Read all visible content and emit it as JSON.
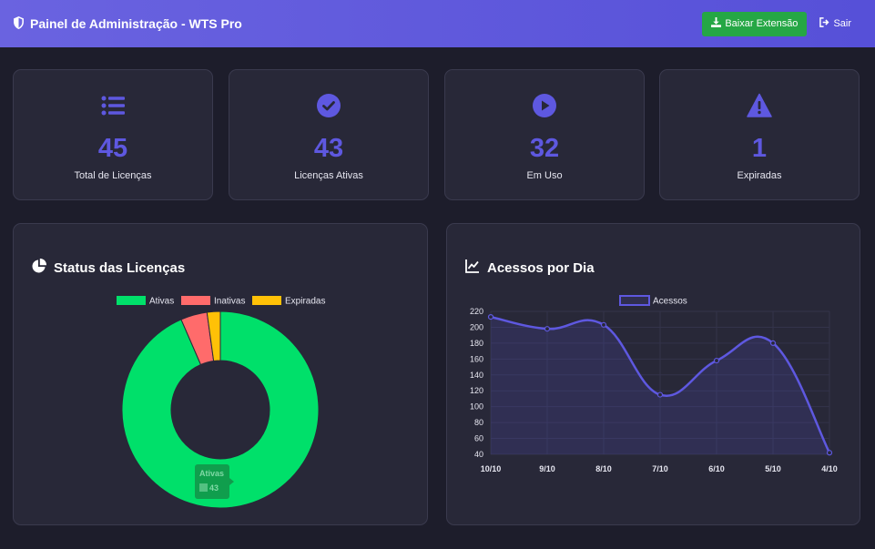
{
  "header": {
    "title": "Painel de Administração - WTS Pro",
    "download_label": "Baixar Extensão",
    "logout_label": "Sair"
  },
  "stats": [
    {
      "value": "45",
      "label": "Total de Licenças",
      "icon": "list-icon"
    },
    {
      "value": "43",
      "label": "Licenças Ativas",
      "icon": "check-circle-icon"
    },
    {
      "value": "32",
      "label": "Em Uso",
      "icon": "play-circle-icon"
    },
    {
      "value": "1",
      "label": "Expiradas",
      "icon": "warning-icon"
    }
  ],
  "status_panel": {
    "title": "Status das Licenças"
  },
  "access_panel": {
    "title": "Acessos por Dia"
  },
  "colors": {
    "accent": "#5e58e0",
    "active": "#00e06a",
    "inactive": "#ff6b6b",
    "expired": "#ffc107",
    "download": "#25a745"
  },
  "chart_data": [
    {
      "type": "pie",
      "variant": "doughnut",
      "categories": [
        "Ativas",
        "Inativas",
        "Expiradas"
      ],
      "values": [
        43,
        2,
        1
      ],
      "colors": [
        "#00e06a",
        "#ff6b6b",
        "#ffc107"
      ],
      "legend": "top",
      "tooltip": {
        "label": "Ativas",
        "value": "43"
      }
    },
    {
      "type": "area",
      "categories": [
        "10/10",
        "9/10",
        "8/10",
        "7/10",
        "6/10",
        "5/10",
        "4/10"
      ],
      "series": [
        {
          "name": "Acessos",
          "values": [
            213,
            198,
            203,
            115,
            158,
            180,
            42
          ]
        }
      ],
      "ylim": [
        40,
        220
      ],
      "yticks": [
        40,
        60,
        80,
        100,
        120,
        140,
        160,
        180,
        200,
        220
      ],
      "grid": true,
      "legend": "top"
    }
  ]
}
